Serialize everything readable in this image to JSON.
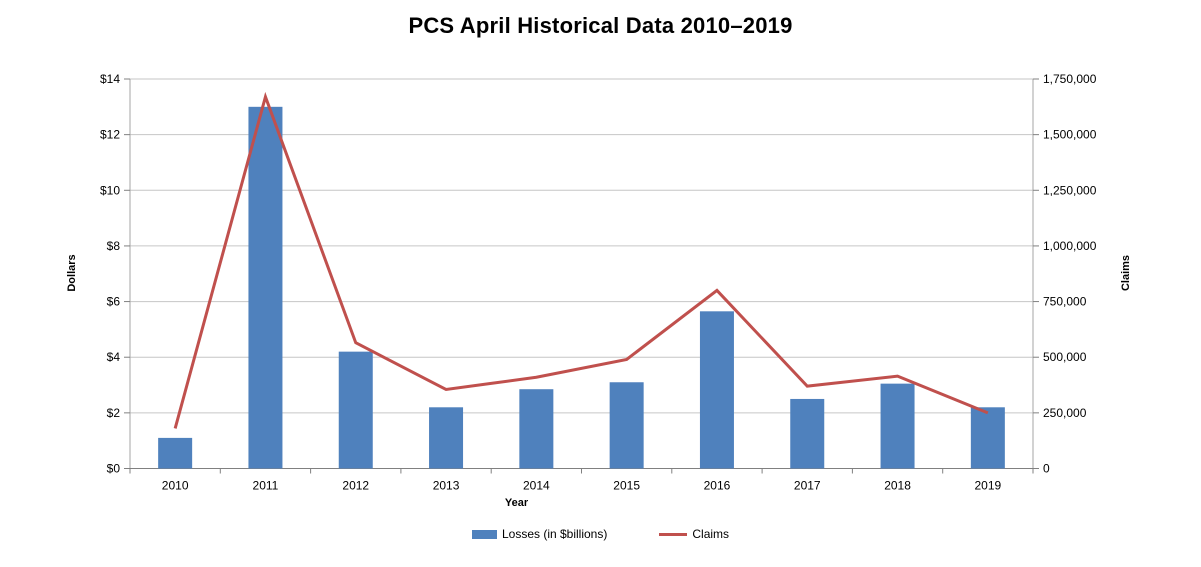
{
  "chart_data": {
    "type": "bar",
    "subtype": "combo-bar-line-dual-axis",
    "title": "PCS April Historical Data 2010–2019",
    "xlabel": "Year",
    "ylabel_left": "Dollars",
    "ylabel_right": "Claims",
    "categories": [
      "2010",
      "2011",
      "2012",
      "2013",
      "2014",
      "2015",
      "2016",
      "2017",
      "2018",
      "2019"
    ],
    "series": [
      {
        "name": "Losses (in $billions)",
        "type": "bar",
        "axis": "left",
        "color": "#4F81BD",
        "values": [
          1.1,
          13.0,
          4.2,
          2.2,
          2.85,
          3.1,
          5.65,
          2.5,
          3.05,
          2.2
        ]
      },
      {
        "name": "Claims",
        "type": "line",
        "axis": "right",
        "color": "#C0504D",
        "values": [
          180000,
          1670000,
          565000,
          355000,
          410000,
          490000,
          800000,
          370000,
          415000,
          250000
        ]
      }
    ],
    "y_left": {
      "min": 0,
      "max": 14,
      "step": 2,
      "tick_prefix": "$",
      "tick_labels": [
        "$0",
        "$2",
        "$4",
        "$6",
        "$8",
        "$10",
        "$12",
        "$14"
      ]
    },
    "y_right": {
      "min": 0,
      "max": 1750000,
      "step": 250000,
      "tick_labels": [
        "0",
        "250,000",
        "500,000",
        "750,000",
        "1,000,000",
        "1,250,000",
        "1,500,000",
        "1,750,000"
      ]
    },
    "grid": true,
    "legend_position": "bottom"
  },
  "colors": {
    "bar": "#4F81BD",
    "line": "#C0504D",
    "gridline": "#C6C6C6",
    "axis_side": "#A6A6A6",
    "axis_bottom": "#808080",
    "text": "#000000",
    "background": "#FFFFFF"
  }
}
